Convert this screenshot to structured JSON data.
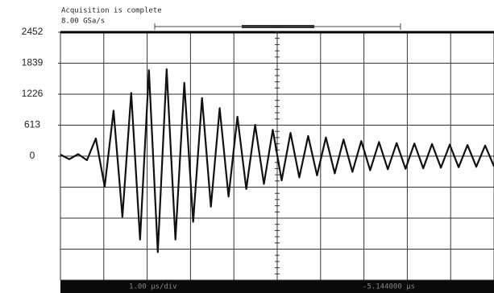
{
  "chart_data": {
    "type": "line",
    "header": [
      "Acquisition is complete",
      "8.00 GSa/s"
    ],
    "footer": [
      "1.00 µs/div",
      "-5.144000 µs"
    ],
    "ylim": [
      -2452,
      2452
    ],
    "yticks": [
      2452,
      1839,
      1226,
      613,
      0
    ],
    "color": "#111111",
    "values": [
      30,
      -60,
      40,
      -80,
      350,
      -600,
      900,
      -1200,
      1250,
      -1650,
      1700,
      -1900,
      1720,
      -1650,
      1450,
      -1300,
      1150,
      -1000,
      950,
      -800,
      780,
      -650,
      620,
      -550,
      520,
      -480,
      460,
      -420,
      400,
      -380,
      370,
      -340,
      330,
      -310,
      300,
      -280,
      280,
      -260,
      260,
      -250,
      250,
      -240,
      240,
      -230,
      230,
      -220,
      220,
      -210,
      210,
      -200
    ]
  }
}
